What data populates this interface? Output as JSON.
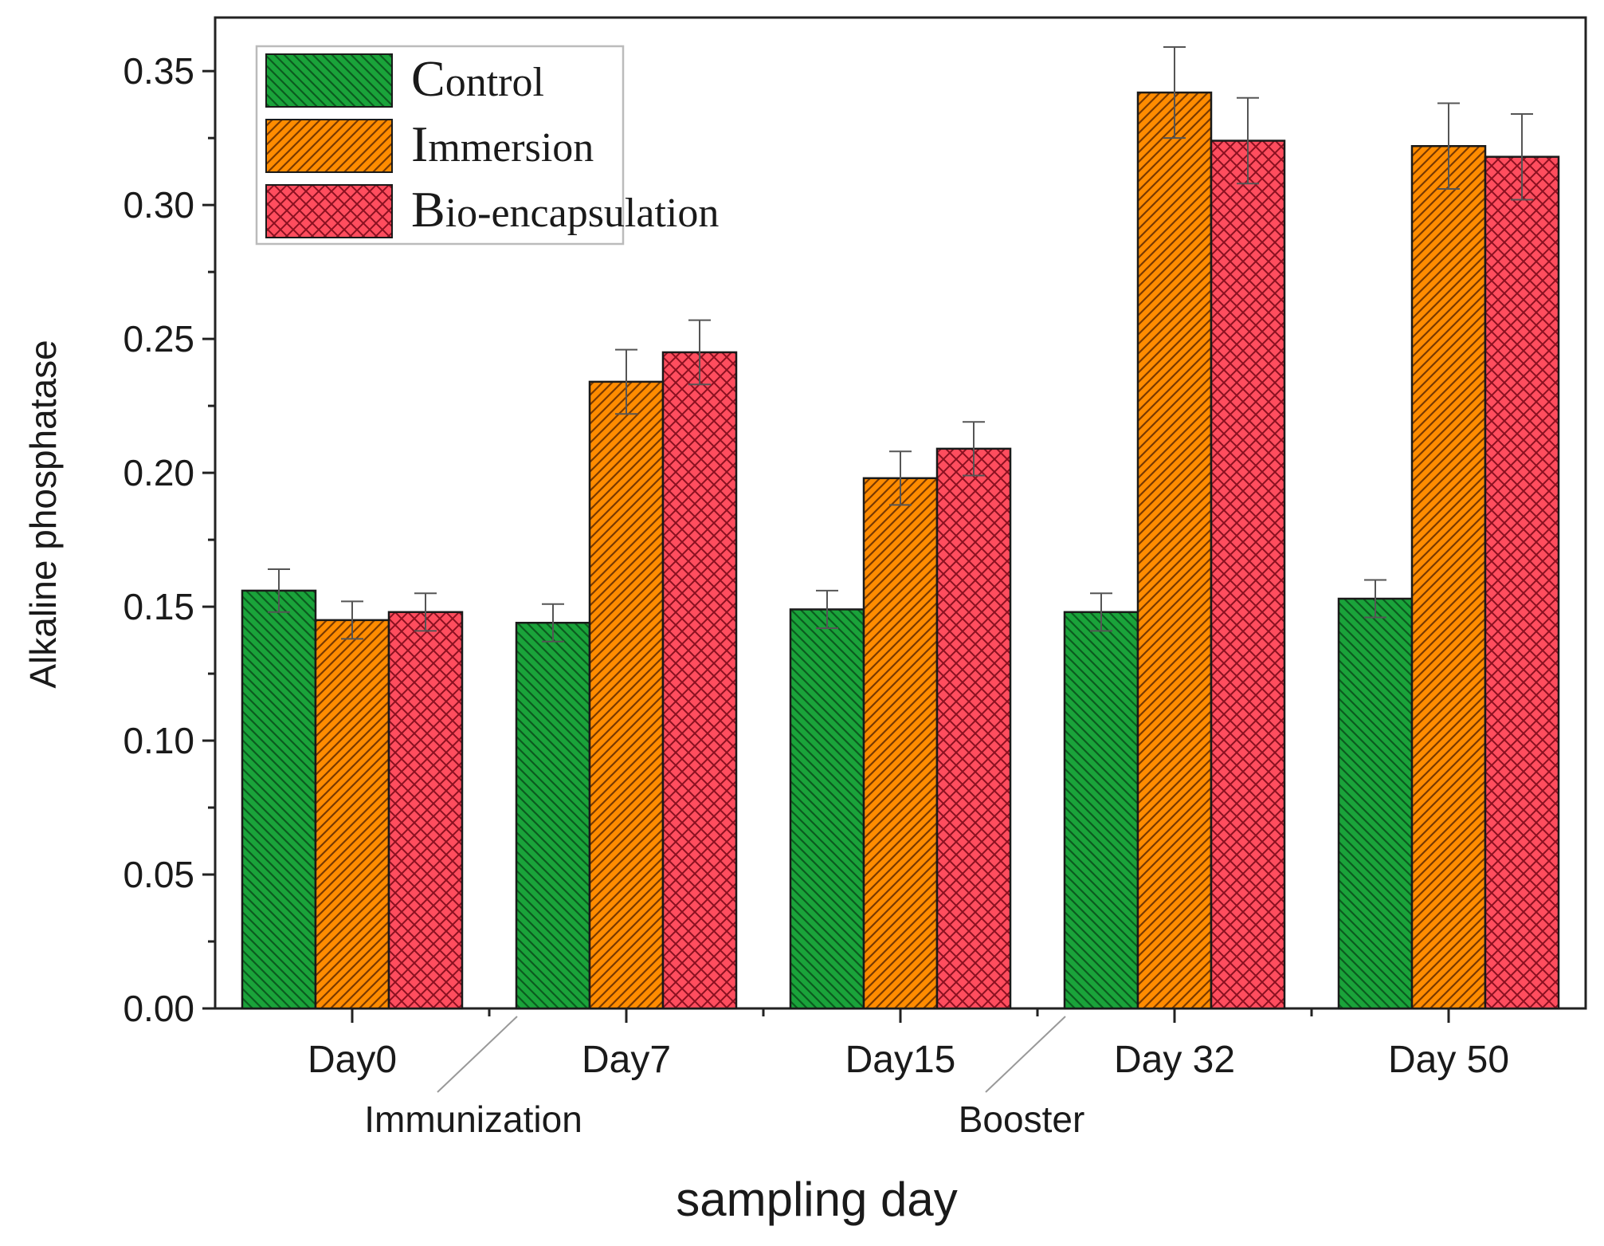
{
  "chart_data": {
    "type": "bar",
    "title": "",
    "xlabel": "sampling day",
    "ylabel": "Alkaline phosphatase",
    "ylim": [
      0,
      0.37
    ],
    "yticks": [
      "0.00",
      "0.05",
      "0.10",
      "0.15",
      "0.20",
      "0.25",
      "0.30",
      "0.35"
    ],
    "ytick_values": [
      0,
      0.05,
      0.1,
      0.15,
      0.2,
      0.25,
      0.3,
      0.35
    ],
    "categories": [
      "Day0",
      "Day7",
      "Day15",
      "Day 32",
      "Day 50"
    ],
    "series": [
      {
        "name": "Control",
        "legend_initial": "C",
        "legend_rest": "ontrol",
        "color": "#1aa33a",
        "pattern": "diagonal-down",
        "values": [
          0.156,
          0.144,
          0.149,
          0.148,
          0.153
        ],
        "errors": [
          0.008,
          0.007,
          0.007,
          0.007,
          0.007
        ]
      },
      {
        "name": "Immersion",
        "legend_initial": "I",
        "legend_rest": "mmersion",
        "color": "#ff8c00",
        "pattern": "diagonal-up",
        "values": [
          0.145,
          0.234,
          0.198,
          0.342,
          0.322
        ],
        "errors": [
          0.007,
          0.012,
          0.01,
          0.017,
          0.016
        ]
      },
      {
        "name": "Bio-encapsulation",
        "legend_initial": "B",
        "legend_rest": "io-encapsulation",
        "color": "#ff4d5e",
        "pattern": "crosshatch",
        "values": [
          0.148,
          0.245,
          0.209,
          0.324,
          0.318
        ],
        "errors": [
          0.007,
          0.012,
          0.01,
          0.016,
          0.016
        ]
      }
    ],
    "legend_position": "top-left",
    "annotations": [
      {
        "text": "Immunization",
        "between": [
          "Day0",
          "Day7"
        ]
      },
      {
        "text": "Booster",
        "between": [
          "Day15",
          "Day 32"
        ]
      }
    ]
  }
}
